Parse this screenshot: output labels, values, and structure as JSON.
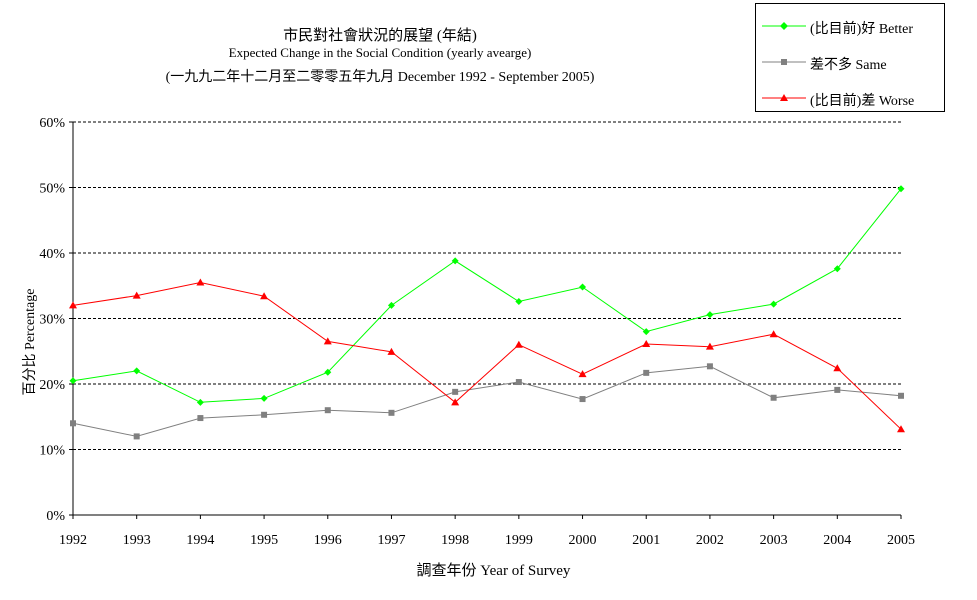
{
  "chart_data": {
    "type": "line",
    "title": "市民對社會狀況的展望 (年結)",
    "subtitle": "Expected Change in the Social Condition (yearly avearge)",
    "subtitle2": "(一九九二年十二月至二零零五年九月 December 1992 - September 2005)",
    "xlabel": "調查年份 Year of Survey",
    "ylabel": "百分比 Percentage",
    "categories": [
      "1992",
      "1993",
      "1994",
      "1995",
      "1996",
      "1997",
      "1998",
      "1999",
      "2000",
      "2001",
      "2002",
      "2003",
      "2004",
      "2005"
    ],
    "yticks": [
      "0%",
      "10%",
      "20%",
      "30%",
      "40%",
      "50%",
      "60%"
    ],
    "ylim": [
      0,
      60
    ],
    "grid": true,
    "legend_position": "top-right",
    "series": [
      {
        "name": "(比目前)好 Better",
        "color": "#00ff00",
        "marker": "diamond",
        "values": [
          20.5,
          22.0,
          17.2,
          17.8,
          21.8,
          32.0,
          38.8,
          32.6,
          34.8,
          28.0,
          30.6,
          32.2,
          37.6,
          49.8
        ]
      },
      {
        "name": "差不多 Same",
        "color": "#808080",
        "marker": "square",
        "values": [
          14.0,
          12.0,
          14.8,
          15.3,
          16.0,
          15.6,
          18.8,
          20.3,
          17.7,
          21.7,
          22.7,
          17.9,
          19.1,
          18.2
        ]
      },
      {
        "name": "(比目前)差 Worse",
        "color": "#ff0000",
        "marker": "triangle",
        "values": [
          32.0,
          33.5,
          35.5,
          33.4,
          26.5,
          24.9,
          17.2,
          26.0,
          21.5,
          26.1,
          25.7,
          27.6,
          22.4,
          13.1
        ]
      }
    ]
  }
}
